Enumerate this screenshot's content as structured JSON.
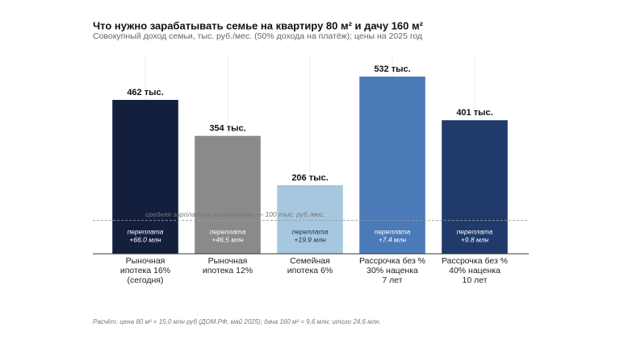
{
  "chart_data": {
    "type": "bar",
    "title": "Что нужно зарабатывать семье на квартиру 80 м² и дачу 160 м²",
    "subtitle": "Совокупный доход семьи, тыс. руб./мес. (50% дохода на платёж); цены на 2025 год",
    "categories": [
      "Рыночная\nипотека 16%\n(сегодня)",
      "Рыночная\nипотека 12%",
      "Семейная\nипотека 6%",
      "Рассрочка без %\n30% наценка\n7 лет",
      "Рассрочка без %\n40% наценка\n10 лет"
    ],
    "values": [
      462,
      354,
      206,
      532,
      401
    ],
    "value_labels": [
      "462 тыс.",
      "354 тыс.",
      "206 тыс.",
      "532 тыс.",
      "401 тыс."
    ],
    "colors": [
      "#141f3d",
      "#8a8a8a",
      "#a6c8df",
      "#4a7ab8",
      "#1f3a6b"
    ],
    "overpayment_label": "переплата",
    "overpayments": [
      "+66.0 млн",
      "+46.5 млн",
      "+19.9 млн",
      "+7.4 млн",
      "+9.8 млн"
    ],
    "reference": {
      "value": 100,
      "label": "средняя зарплата в миллионнике — 100 тыс. руб./мес."
    },
    "ylim": [
      0,
      600
    ],
    "footnote": "Расчёт: цена 80 м² = 15,0 млн руб (ДОМ.РФ, май 2025); дача 160 м² = 9,6 млн; итого 24,6 млн."
  }
}
